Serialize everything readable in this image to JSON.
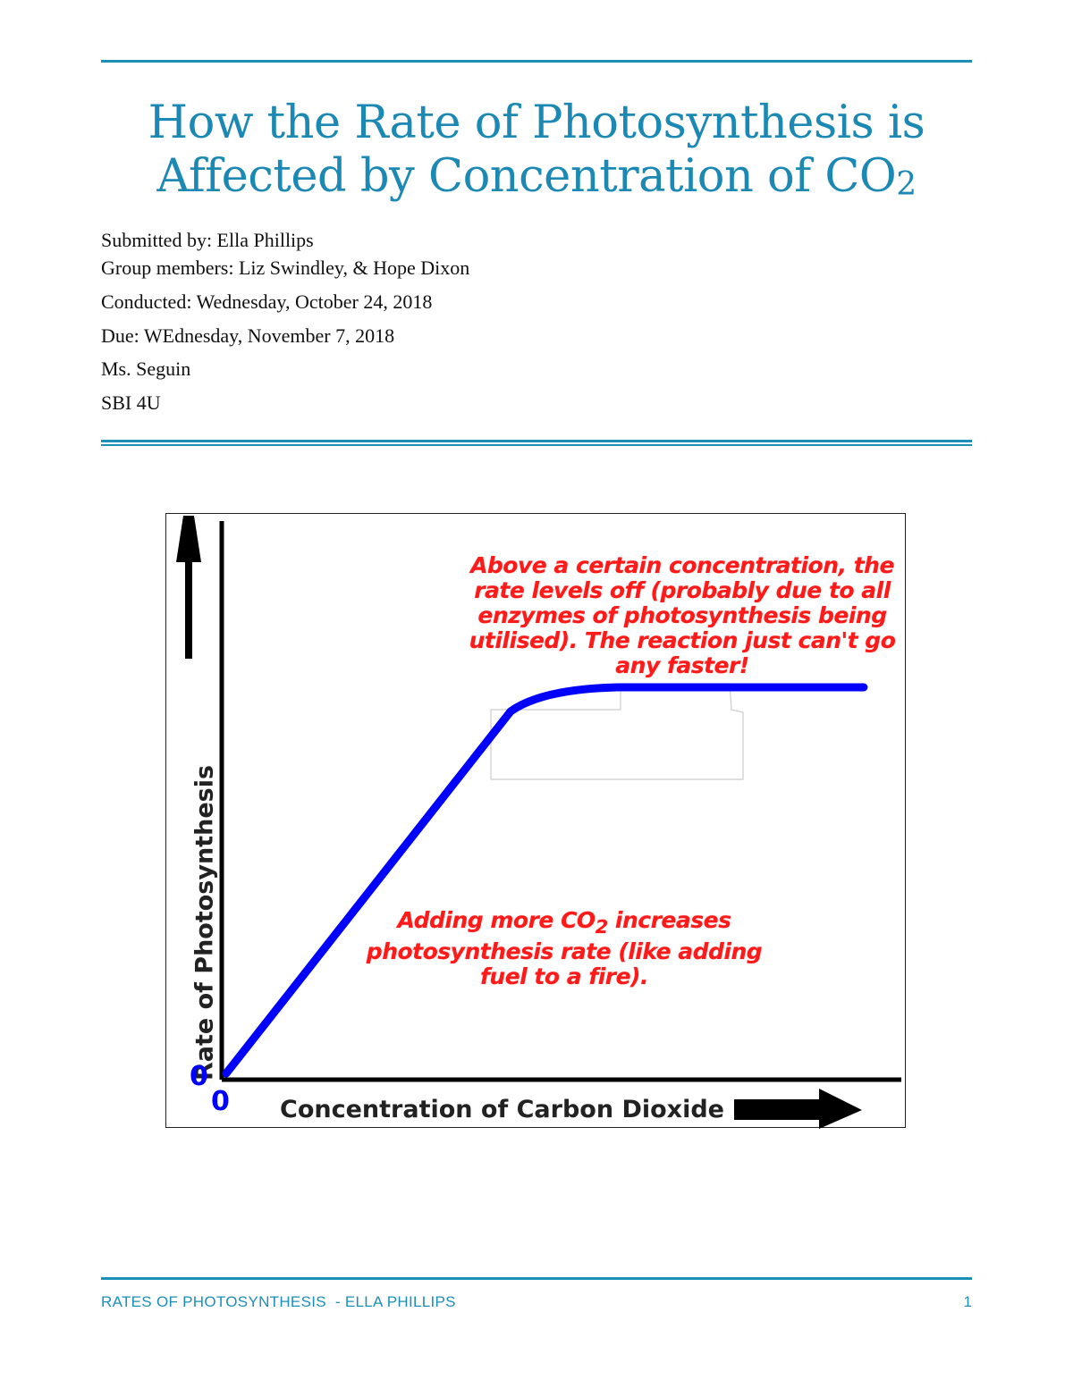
{
  "document": {
    "title_line1": "How the Rate of Photosynthesis is",
    "title_line2_main": "Affected by Concentration of CO",
    "title_line2_sub": "2",
    "submitted_by": "Submitted by: Ella Phillips",
    "group_members": "Group members: Liz Swindley, & Hope Dixon",
    "conducted": "Conducted: Wednesday, October 24, 2018",
    "due": "Due: WEdnesday, November 7, 2018",
    "teacher": "Ms. Seguin",
    "course": "SBI 4U"
  },
  "figure": {
    "y_axis_label": "Rate of Photosynthesis",
    "x_axis_label": "Concentration of Carbon Dioxide",
    "y_origin_label": "0",
    "x_origin_label": "0",
    "annotation_top": [
      "Above a certain concentration, the",
      "rate levels off (probably due to all",
      "enzymes of photosynthesis being",
      "utilised). The reaction just can't go",
      "any faster!"
    ],
    "annotation_bottom_prefix": "Adding more CO",
    "annotation_bottom_sub": "2",
    "annotation_bottom_suffix": " increases",
    "annotation_bottom_lines": [
      "photosynthesis rate (like adding",
      "fuel to a fire)."
    ],
    "curve_color": "#0000ff",
    "annotation_color": "#ff1a1a"
  },
  "chart_data": {
    "type": "line",
    "xlabel": "Concentration of Carbon Dioxide",
    "ylabel": "Rate of Photosynthesis",
    "x_tick_labels": [
      "0"
    ],
    "y_tick_labels": [
      "0"
    ],
    "shape": "linear increase then plateau",
    "grid": false
  },
  "footer": {
    "text": "RATES OF PHOTOSYNTHESIS  - ELLA PHILLIPS",
    "page_number": "1"
  },
  "colors": {
    "accent": "#1b8fb8"
  }
}
